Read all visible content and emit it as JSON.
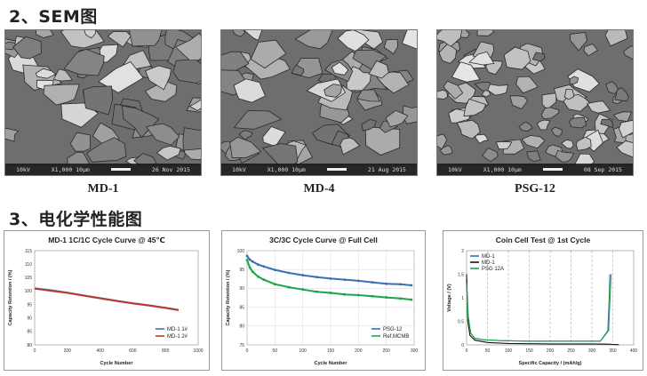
{
  "sections": {
    "sem_heading": "2、SEM图",
    "electro_heading": "3、电化学性能图"
  },
  "sem_images": [
    {
      "label": "MD-1",
      "footer_left": "10kV",
      "footer_mid": "X1,000  10μm",
      "footer_right": "26 Nov 2015"
    },
    {
      "label": "MD-4",
      "footer_left": "10kV",
      "footer_mid": "X1,000  10μm",
      "footer_right": "21 Aug 2015"
    },
    {
      "label": "PSG-12",
      "footer_left": "10kV",
      "footer_mid": "X1,000  10μm",
      "footer_right": "08 Sep 2015"
    }
  ],
  "colors": {
    "blue": "#3a6fb5",
    "red": "#c0392b",
    "green": "#1ea34a",
    "black": "#111111"
  },
  "chart_data": [
    {
      "type": "line",
      "title": "MD-1   1C/1C Cycle Curve @ 45℃",
      "xlabel": "Cycle Number",
      "ylabel": "Capacity Retention / (%)",
      "xlim": [
        0,
        1000
      ],
      "ylim": [
        80,
        115
      ],
      "xticks": [
        "0",
        "200",
        "400",
        "600",
        "800",
        "1000"
      ],
      "yticks": [
        "80",
        "85",
        "90",
        "95",
        "100",
        "105",
        "110",
        "115"
      ],
      "legend_position": "bottom-right",
      "series": [
        {
          "name": "MD-1 1#",
          "x": [
            0,
            100,
            200,
            300,
            400,
            500,
            600,
            700,
            800,
            880
          ],
          "y": [
            101.0,
            100.3,
            99.4,
            98.4,
            97.4,
            96.4,
            95.5,
            94.7,
            93.8,
            93.0
          ]
        },
        {
          "name": "MD-1 2#",
          "x": [
            0,
            100,
            200,
            300,
            400,
            500,
            600,
            700,
            800,
            880
          ],
          "y": [
            100.9,
            100.1,
            99.3,
            98.3,
            97.3,
            96.3,
            95.4,
            94.6,
            93.7,
            92.9
          ]
        }
      ]
    },
    {
      "type": "line",
      "title": "3C/3C Cycle Curve @ Full Cell",
      "xlabel": "Cycle Number",
      "ylabel": "Capacity Retention / (%)",
      "xlim": [
        0,
        300
      ],
      "ylim": [
        75,
        100
      ],
      "xticks": [
        "0",
        "50",
        "100",
        "150",
        "200",
        "250",
        "300"
      ],
      "yticks": [
        "75",
        "80",
        "85",
        "90",
        "95",
        "100"
      ],
      "legend_position": "bottom-right",
      "series": [
        {
          "name": "PSG-12",
          "x": [
            0,
            5,
            10,
            20,
            30,
            50,
            75,
            100,
            125,
            150,
            175,
            200,
            225,
            250,
            275,
            295
          ],
          "y": [
            98.6,
            97.6,
            97.1,
            96.3,
            95.8,
            94.9,
            94.1,
            93.5,
            93.0,
            92.6,
            92.3,
            92.0,
            91.6,
            91.2,
            91.1,
            90.8
          ]
        },
        {
          "name": "Ref.MCMB",
          "x": [
            0,
            5,
            10,
            20,
            30,
            50,
            75,
            100,
            125,
            150,
            175,
            200,
            225,
            250,
            275,
            295
          ],
          "y": [
            97.5,
            95.5,
            94.4,
            93.1,
            92.3,
            91.1,
            90.3,
            89.7,
            89.1,
            88.8,
            88.4,
            88.2,
            87.9,
            87.6,
            87.3,
            87.0
          ]
        }
      ]
    },
    {
      "type": "line",
      "title": "Coin  Cell Test @ 1st Cycle",
      "xlabel": "Specific Capacity /  (mAh/g)",
      "ylabel": "Voltage / (V)",
      "xlim": [
        0,
        400
      ],
      "ylim": [
        0,
        2
      ],
      "xticks": [
        "0",
        "50",
        "100",
        "150",
        "200",
        "250",
        "300",
        "350",
        "400"
      ],
      "yticks": [
        "0",
        "0.5",
        "1",
        "1.5",
        "2"
      ],
      "legend_position": "top-left",
      "series": [
        {
          "name": "MD-1",
          "color": "#3a6fb5",
          "x": [
            0,
            4,
            10,
            20,
            40,
            80,
            150,
            250,
            320,
            338,
            341,
            343
          ],
          "y": [
            1.4,
            0.6,
            0.25,
            0.14,
            0.11,
            0.09,
            0.08,
            0.08,
            0.08,
            0.3,
            0.9,
            1.5
          ]
        },
        {
          "name": "MD-1",
          "color": "#111111",
          "x": [
            0,
            3,
            8,
            20,
            50,
            100,
            200,
            300,
            340,
            352,
            360,
            365
          ],
          "y": [
            1.5,
            0.5,
            0.2,
            0.1,
            0.05,
            0.03,
            0.02,
            0.02,
            0.015,
            0.01,
            0.005,
            0.0
          ]
        },
        {
          "name": "PSG 12A",
          "color": "#1ea34a",
          "x": [
            0,
            4,
            10,
            20,
            40,
            80,
            150,
            250,
            320,
            340,
            343,
            346
          ],
          "y": [
            1.3,
            0.55,
            0.24,
            0.14,
            0.11,
            0.09,
            0.08,
            0.08,
            0.08,
            0.3,
            0.9,
            1.5
          ]
        }
      ]
    }
  ]
}
